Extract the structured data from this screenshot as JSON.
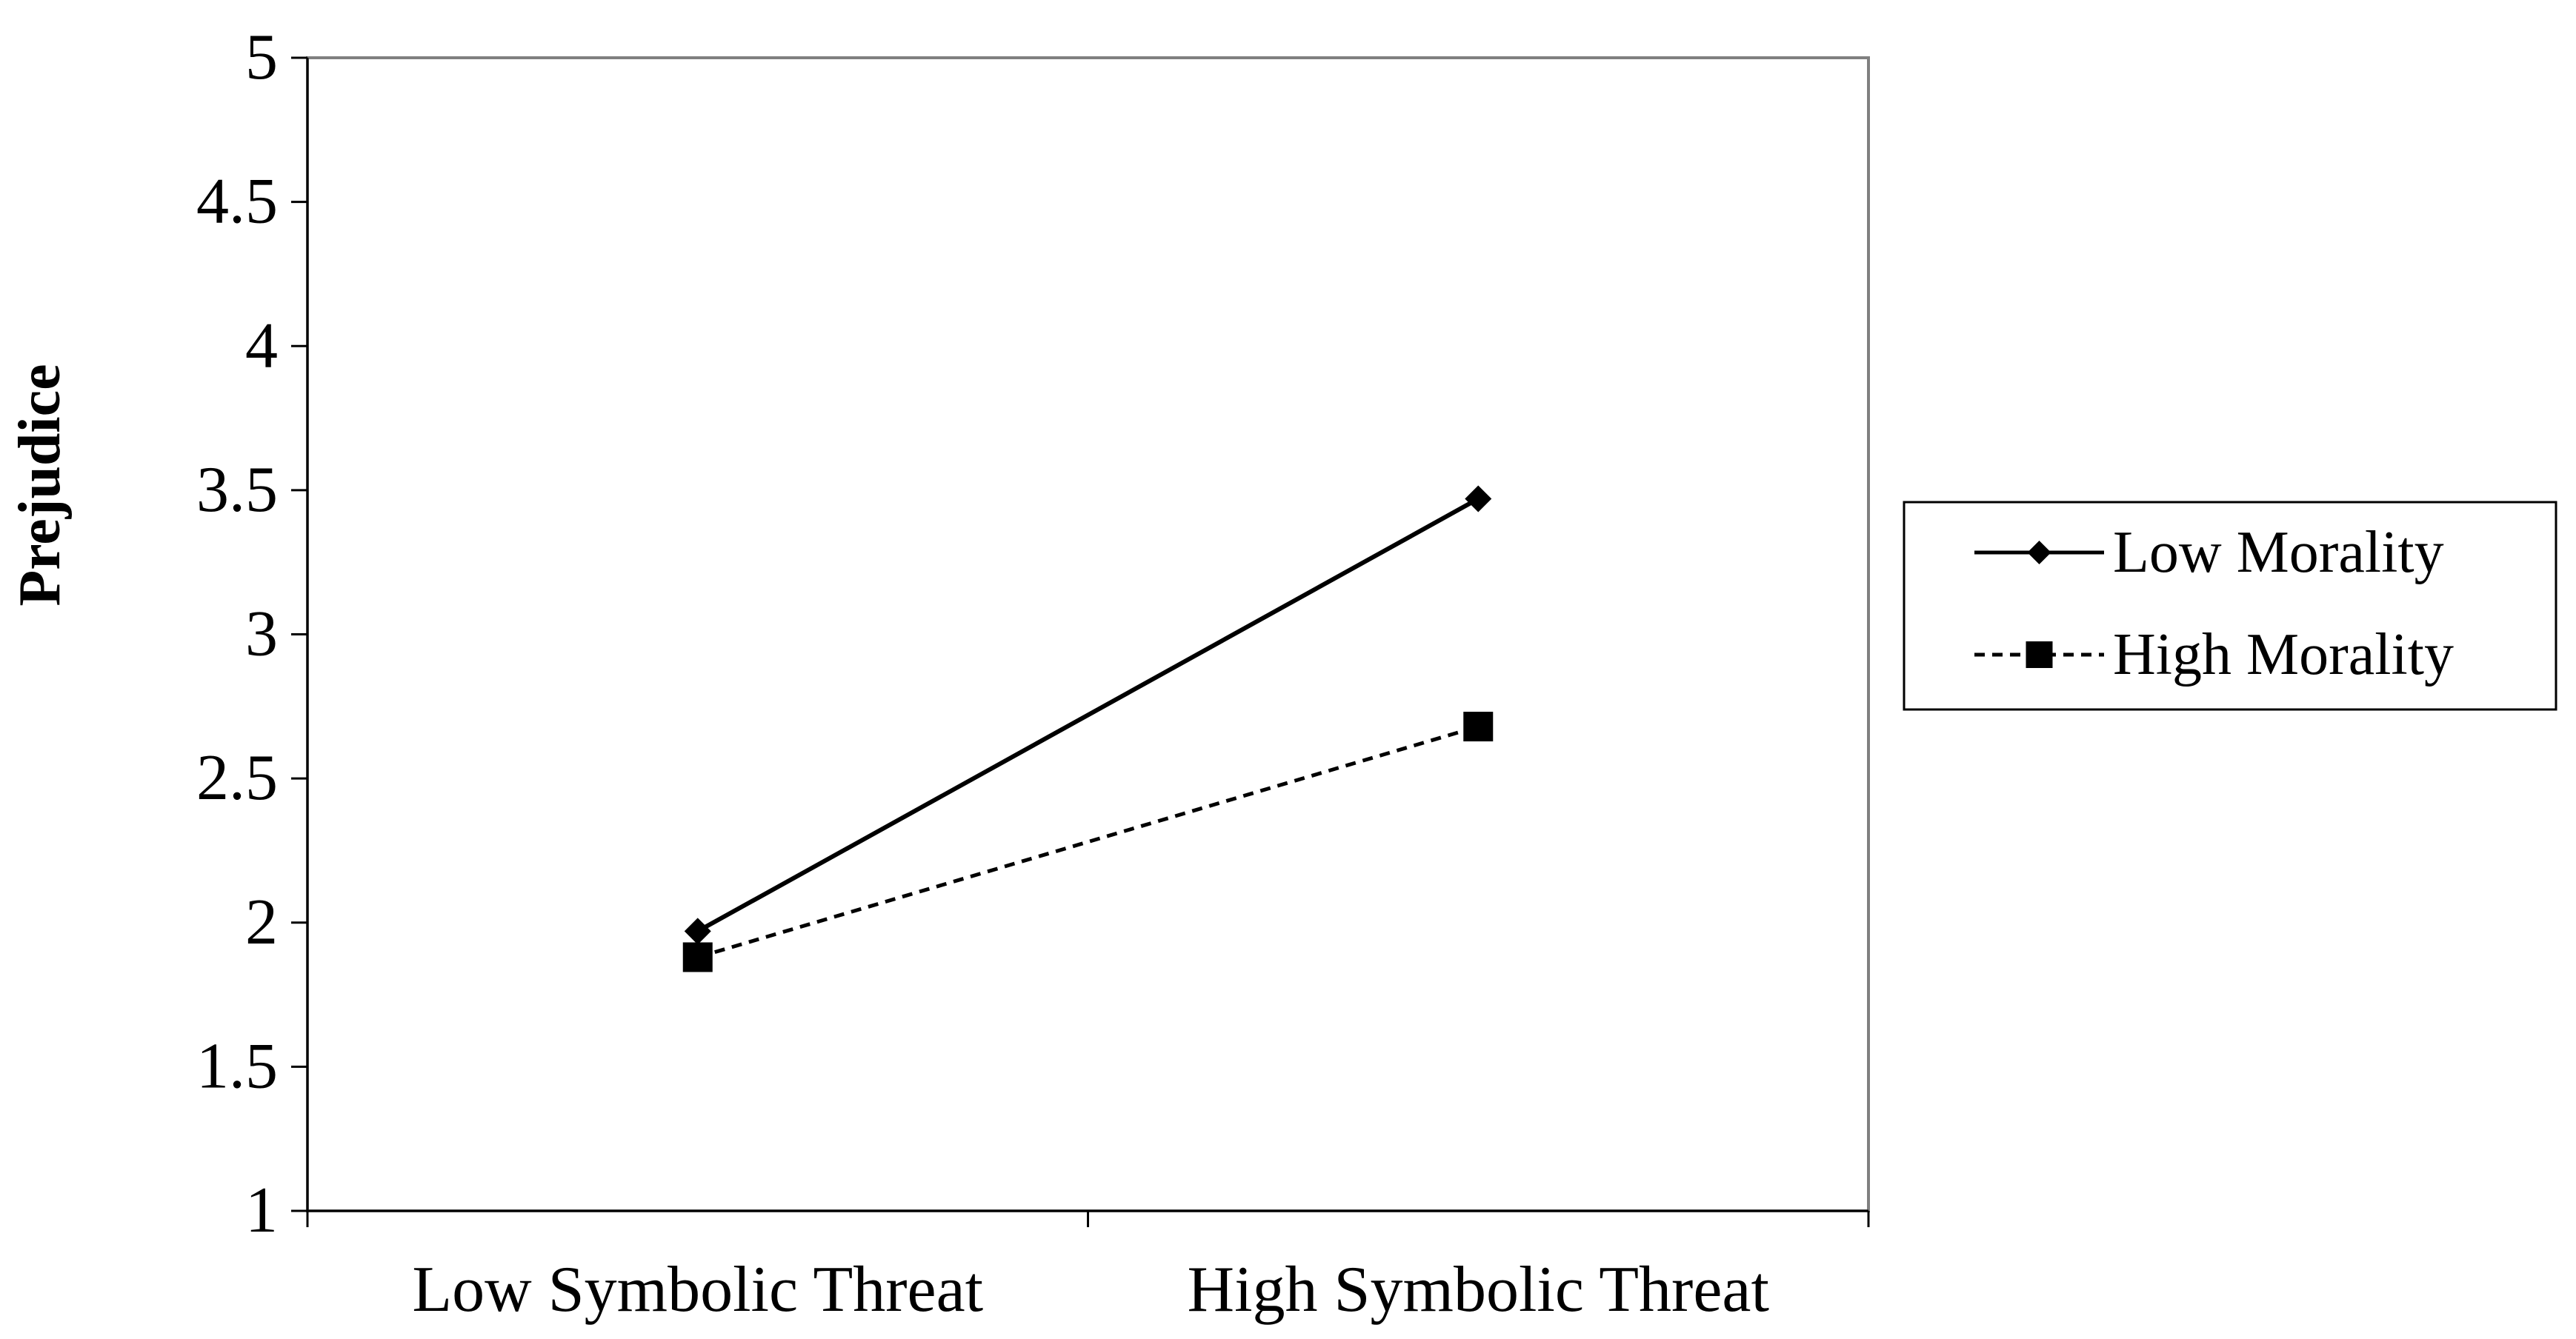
{
  "chart_data": {
    "type": "line",
    "title": "",
    "xlabel": "",
    "ylabel": "Prejudice",
    "ylim": [
      1,
      5
    ],
    "yticks": [
      "1",
      "1.5",
      "2",
      "2.5",
      "3",
      "3.5",
      "4",
      "4.5",
      "5"
    ],
    "categories": [
      "Low Symbolic Threat",
      "High Symbolic Threat"
    ],
    "grid": false,
    "legend_position": "right",
    "series": [
      {
        "name": "Low Morality",
        "values": [
          1.97,
          3.47
        ],
        "marker": "diamond",
        "line_style": "solid",
        "color": "#000000"
      },
      {
        "name": "High Morality",
        "values": [
          1.88,
          2.68
        ],
        "marker": "square",
        "line_style": "dashed",
        "color": "#000000"
      }
    ]
  }
}
